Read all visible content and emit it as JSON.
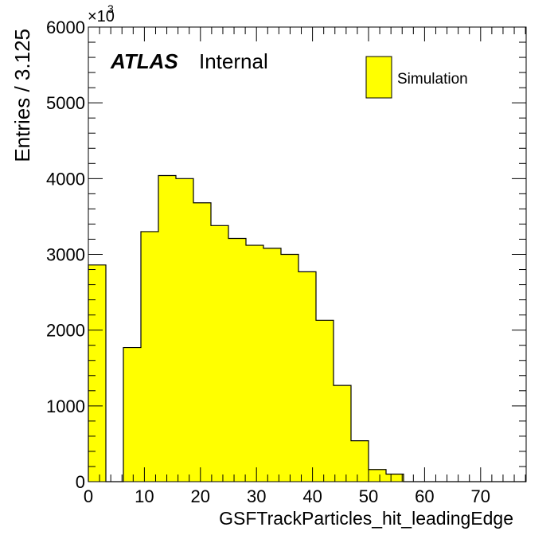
{
  "chart_data": {
    "type": "bar",
    "xlabel": "GSFTrackParticles_hit_leadingEdge",
    "ylabel": "Entries / 3.125",
    "multiplier_base": "×10",
    "multiplier_exp": "3",
    "xlim": [
      0,
      78.125
    ],
    "ylim": [
      0,
      6000
    ],
    "bin_width": 3.125,
    "values": [
      2860,
      0,
      1770,
      3300,
      4040,
      4000,
      3680,
      3380,
      3210,
      3120,
      3080,
      3000,
      2770,
      2130,
      1270,
      540,
      160,
      100,
      0,
      0,
      0,
      0,
      0,
      0,
      0
    ],
    "x_ticks": [
      {
        "value": 0,
        "label": "0"
      },
      {
        "value": 10,
        "label": "10"
      },
      {
        "value": 20,
        "label": "20"
      },
      {
        "value": 30,
        "label": "30"
      },
      {
        "value": 40,
        "label": "40"
      },
      {
        "value": 50,
        "label": "50"
      },
      {
        "value": 60,
        "label": "60"
      },
      {
        "value": 70,
        "label": "70"
      }
    ],
    "y_ticks": [
      {
        "value": 0,
        "label": "0"
      },
      {
        "value": 1000,
        "label": "1000"
      },
      {
        "value": 2000,
        "label": "2000"
      },
      {
        "value": 3000,
        "label": "3000"
      },
      {
        "value": 4000,
        "label": "4000"
      },
      {
        "value": 5000,
        "label": "5000"
      },
      {
        "value": 6000,
        "label": "6000"
      }
    ],
    "x_minor_step": 2,
    "y_minor_step": 200,
    "fill_color": "#ffff00",
    "line_color": "#000000",
    "atlas_label": "ATLAS",
    "atlas_sublabel": "Internal",
    "legend": {
      "position": "top-right",
      "entries": [
        {
          "label": "Simulation",
          "color": "#ffff00"
        }
      ]
    },
    "grid": false
  }
}
